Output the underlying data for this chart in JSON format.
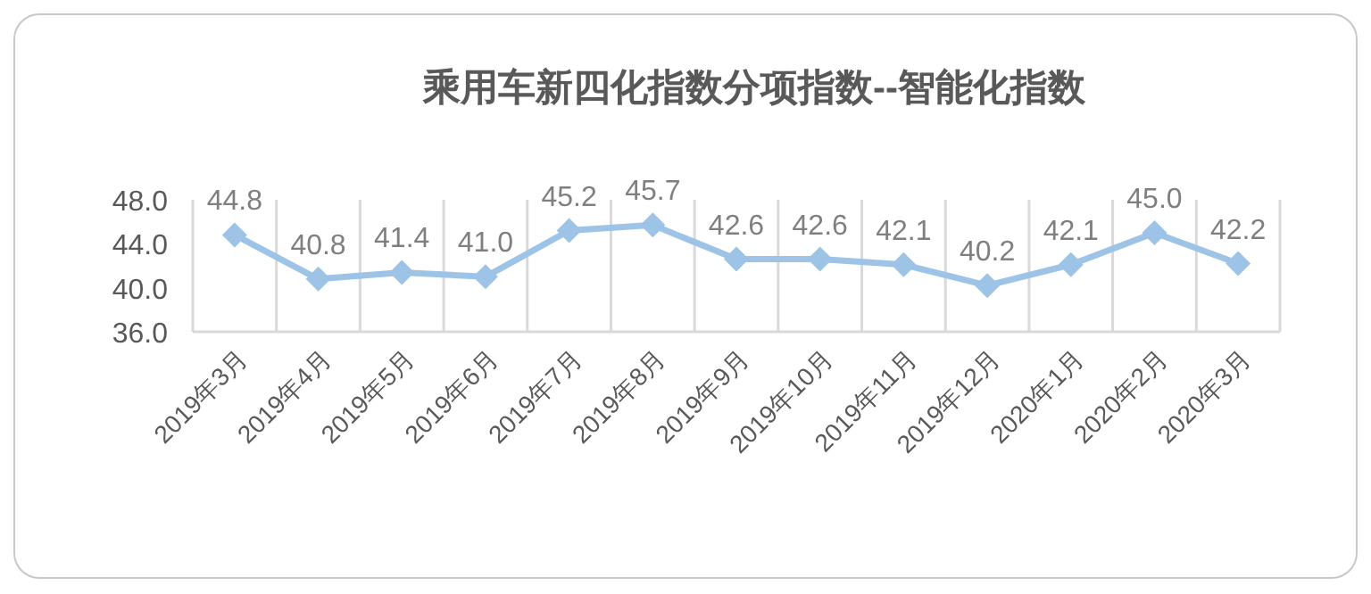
{
  "chart_data": {
    "type": "line",
    "title": "乘用车新四化指数分项指数--智能化指数",
    "categories": [
      "2019年3月",
      "2019年4月",
      "2019年5月",
      "2019年6月",
      "2019年7月",
      "2019年8月",
      "2019年9月",
      "2019年10月",
      "2019年11月",
      "2019年12月",
      "2020年1月",
      "2020年2月",
      "2020年3月"
    ],
    "series": [
      {
        "color": "#9dc3e6",
        "values": [
          44.8,
          40.8,
          41.4,
          41.0,
          45.2,
          45.7,
          42.6,
          42.6,
          42.1,
          40.2,
          42.1,
          45.0,
          42.2
        ],
        "value_labels": [
          "44.8",
          "40.8",
          "41.4",
          "41.0",
          "45.2",
          "45.7",
          "42.6",
          "42.6",
          "42.1",
          "40.2",
          "42.1",
          "45.0",
          "42.2"
        ]
      }
    ],
    "ylim": [
      36,
      48
    ],
    "yticks": [
      {
        "value": 36,
        "label": "36.0"
      },
      {
        "value": 40,
        "label": "40.0"
      },
      {
        "value": 44,
        "label": "44.0"
      },
      {
        "value": 48,
        "label": "48.0"
      }
    ],
    "grid": "x",
    "marker": "diamond"
  }
}
